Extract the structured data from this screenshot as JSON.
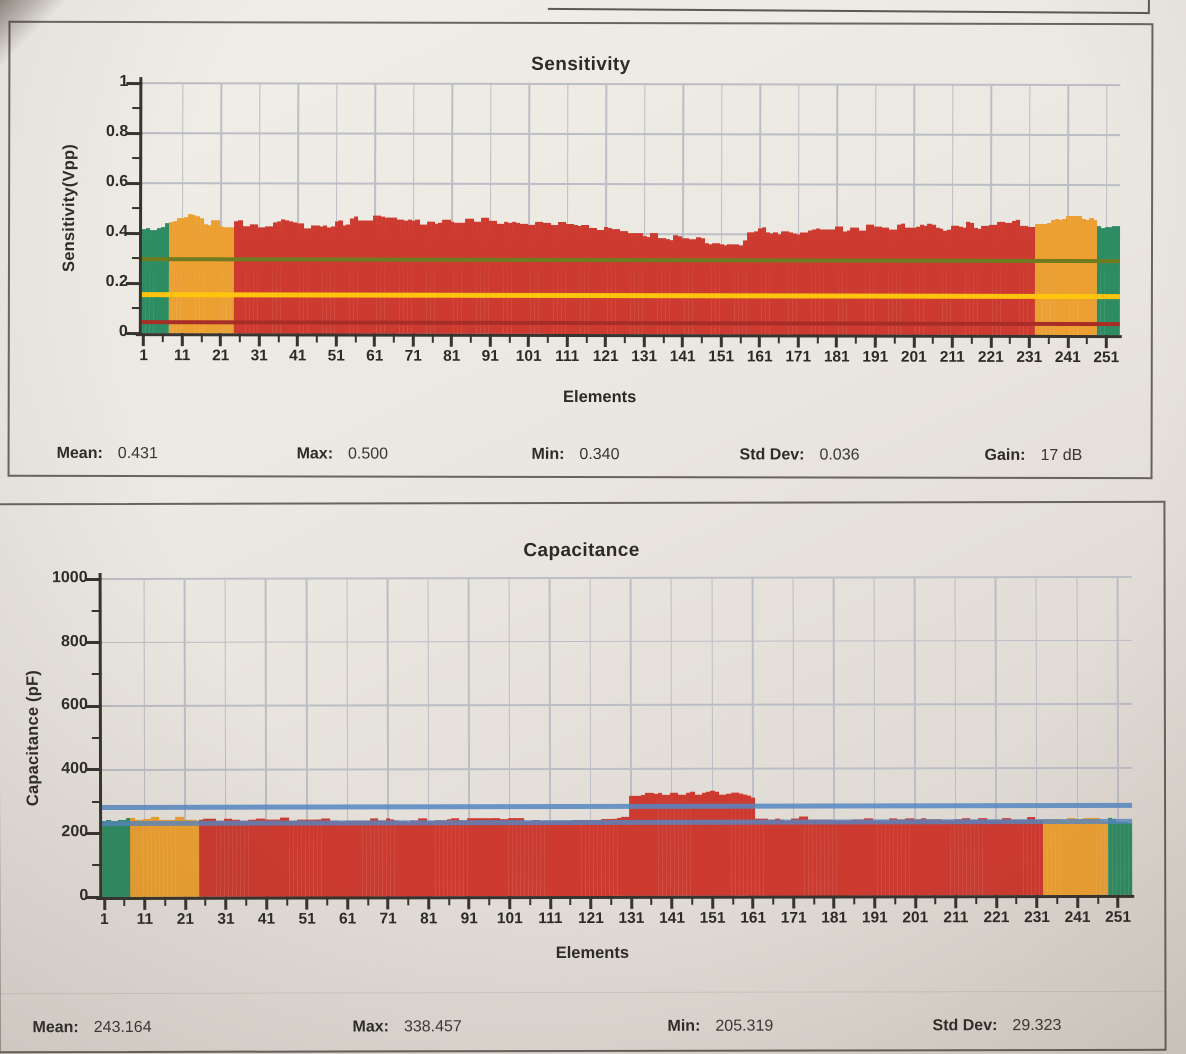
{
  "chart_data": [
    {
      "type": "bar",
      "title": "Sensitivity",
      "xlabel": "Elements",
      "ylabel": "Sensitivity(Vpp)",
      "ylim": [
        0,
        1
      ],
      "yticks": [
        0,
        0.2,
        0.4,
        0.6,
        0.8,
        1
      ],
      "y_minor_step": 0.1,
      "grid": true,
      "n_elements": 254,
      "x_major_start": 1,
      "x_major_step": 10,
      "x_major_end": 251,
      "x_minor_step": 5,
      "colors": {
        "red": "#CD3A30",
        "orange": "#ECA032",
        "green": "#2E8C62"
      },
      "zones": [
        {
          "from": 1,
          "to": 7,
          "color": "green"
        },
        {
          "from": 8,
          "to": 24,
          "color": "orange"
        },
        {
          "from": 25,
          "to": 232,
          "color": "red"
        },
        {
          "from": 233,
          "to": 248,
          "color": "orange"
        },
        {
          "from": 249,
          "to": 254,
          "color": "green"
        }
      ],
      "profile": [
        [
          1,
          0.415
        ],
        [
          5,
          0.42
        ],
        [
          8,
          0.43
        ],
        [
          10,
          0.455
        ],
        [
          13,
          0.465
        ],
        [
          16,
          0.45
        ],
        [
          19,
          0.44
        ],
        [
          23,
          0.432
        ],
        [
          27,
          0.44
        ],
        [
          32,
          0.437
        ],
        [
          37,
          0.443
        ],
        [
          42,
          0.432
        ],
        [
          47,
          0.428
        ],
        [
          52,
          0.44
        ],
        [
          57,
          0.462
        ],
        [
          61,
          0.468
        ],
        [
          65,
          0.455
        ],
        [
          69,
          0.443
        ],
        [
          73,
          0.45
        ],
        [
          78,
          0.452
        ],
        [
          83,
          0.448
        ],
        [
          88,
          0.455
        ],
        [
          93,
          0.45
        ],
        [
          98,
          0.443
        ],
        [
          103,
          0.44
        ],
        [
          108,
          0.442
        ],
        [
          113,
          0.437
        ],
        [
          118,
          0.43
        ],
        [
          123,
          0.42
        ],
        [
          128,
          0.408
        ],
        [
          133,
          0.398
        ],
        [
          138,
          0.388
        ],
        [
          143,
          0.378
        ],
        [
          148,
          0.368
        ],
        [
          152,
          0.36
        ],
        [
          156,
          0.352
        ],
        [
          158,
          0.415
        ],
        [
          162,
          0.425
        ],
        [
          166,
          0.408
        ],
        [
          170,
          0.398
        ],
        [
          174,
          0.418
        ],
        [
          178,
          0.428
        ],
        [
          183,
          0.42
        ],
        [
          188,
          0.43
        ],
        [
          193,
          0.428
        ],
        [
          198,
          0.433
        ],
        [
          203,
          0.44
        ],
        [
          208,
          0.428
        ],
        [
          213,
          0.443
        ],
        [
          218,
          0.43
        ],
        [
          223,
          0.44
        ],
        [
          228,
          0.445
        ],
        [
          232,
          0.44
        ],
        [
          236,
          0.45
        ],
        [
          240,
          0.462
        ],
        [
          244,
          0.468
        ],
        [
          247,
          0.455
        ],
        [
          250,
          0.432
        ],
        [
          254,
          0.425
        ]
      ],
      "noise": 0.014,
      "noise_seed": 7,
      "ref_lines": [
        {
          "name": "green-threshold-line",
          "value": 0.295,
          "color": "#6E7B20",
          "thickness": 4
        },
        {
          "name": "yellow-threshold-line",
          "value": 0.155,
          "color": "#FFC40E",
          "thickness": 5
        },
        {
          "name": "red-threshold-line",
          "value": 0.045,
          "color": "#A72E26",
          "thickness": 4
        }
      ],
      "stats": [
        {
          "label": "Mean:",
          "value": "0.431"
        },
        {
          "label": "Max:",
          "value": "0.500"
        },
        {
          "label": "Min:",
          "value": "0.340"
        },
        {
          "label": "Std Dev:",
          "value": "0.036"
        },
        {
          "label": "Gain:",
          "value": "17 dB"
        }
      ]
    },
    {
      "type": "bar",
      "title": "Capacitance",
      "xlabel": "Elements",
      "ylabel": "Capacitance (pF)",
      "ylim": [
        0,
        1000
      ],
      "yticks": [
        0,
        200,
        400,
        600,
        800,
        1000
      ],
      "y_minor_step": 100,
      "grid": true,
      "n_elements": 254,
      "x_major_start": 1,
      "x_major_step": 10,
      "x_major_end": 251,
      "x_minor_step": 5,
      "colors": {
        "red": "#CD3A30",
        "orange": "#ECA032",
        "green": "#2E8C62"
      },
      "zones": [
        {
          "from": 1,
          "to": 7,
          "color": "green"
        },
        {
          "from": 8,
          "to": 24,
          "color": "orange"
        },
        {
          "from": 25,
          "to": 232,
          "color": "red"
        },
        {
          "from": 233,
          "to": 248,
          "color": "orange"
        },
        {
          "from": 249,
          "to": 254,
          "color": "green"
        }
      ],
      "profile": [
        [
          1,
          238
        ],
        [
          5,
          241
        ],
        [
          10,
          246
        ],
        [
          15,
          247
        ],
        [
          20,
          245
        ],
        [
          25,
          242
        ],
        [
          32,
          244
        ],
        [
          40,
          241
        ],
        [
          48,
          244
        ],
        [
          56,
          240
        ],
        [
          64,
          243
        ],
        [
          72,
          241
        ],
        [
          80,
          239
        ],
        [
          88,
          242
        ],
        [
          96,
          244
        ],
        [
          104,
          241
        ],
        [
          112,
          239
        ],
        [
          120,
          241
        ],
        [
          126,
          243
        ],
        [
          130,
          244
        ],
        [
          131,
          312
        ],
        [
          134,
          318
        ],
        [
          138,
          322
        ],
        [
          142,
          319
        ],
        [
          146,
          322
        ],
        [
          150,
          325
        ],
        [
          154,
          319
        ],
        [
          157,
          322
        ],
        [
          160,
          316
        ],
        [
          161,
          308
        ],
        [
          162,
          242
        ],
        [
          168,
          239
        ],
        [
          175,
          242
        ],
        [
          182,
          238
        ],
        [
          189,
          240
        ],
        [
          196,
          239
        ],
        [
          203,
          241
        ],
        [
          210,
          239
        ],
        [
          217,
          241
        ],
        [
          224,
          240
        ],
        [
          231,
          242
        ],
        [
          238,
          241
        ],
        [
          244,
          239
        ],
        [
          249,
          236
        ],
        [
          254,
          230
        ]
      ],
      "noise": 6,
      "noise_seed": 13,
      "ref_lines": [
        {
          "name": "upper-limit-line",
          "value": 280,
          "color": "rgba(85,135,195,0.85)",
          "thickness": 5
        },
        {
          "name": "lower-limit-line",
          "value": 232,
          "color": "rgba(85,135,195,0.8)",
          "thickness": 5
        }
      ],
      "stats": [
        {
          "label": "Mean:",
          "value": "243.164"
        },
        {
          "label": "Max:",
          "value": "338.457"
        },
        {
          "label": "Min:",
          "value": "205.319"
        },
        {
          "label": "Std Dev:",
          "value": "29.323"
        }
      ]
    }
  ]
}
